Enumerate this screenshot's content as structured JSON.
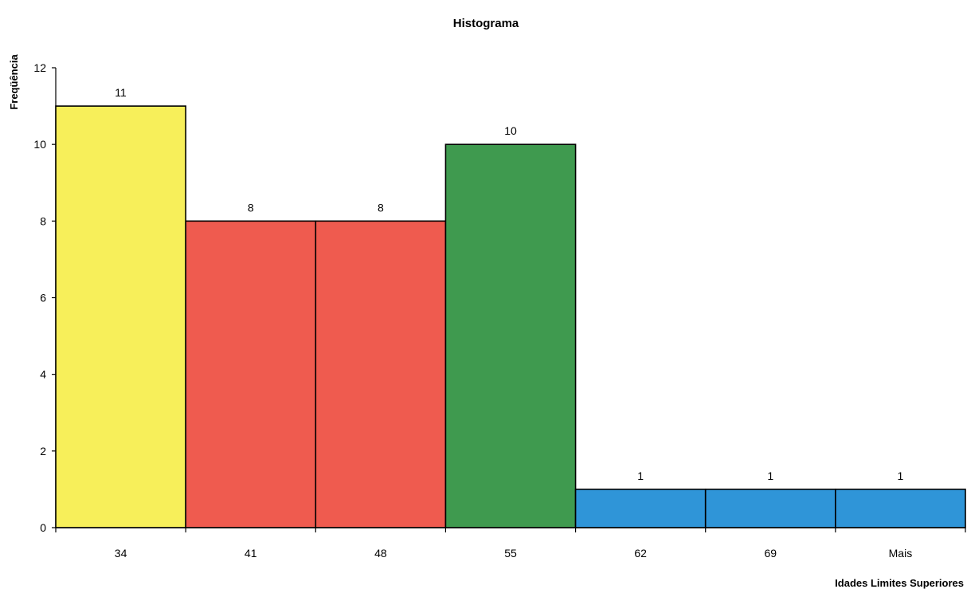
{
  "chart_data": {
    "type": "bar",
    "title": "Histograma",
    "xlabel": "Idades Limites Superiores",
    "ylabel": "Freqüência",
    "categories": [
      "34",
      "41",
      "48",
      "55",
      "62",
      "69",
      "Mais"
    ],
    "values": [
      11,
      8,
      8,
      10,
      1,
      1,
      1
    ],
    "bar_colors": [
      "#f7ef5a",
      "#ef5b4f",
      "#ef5b4f",
      "#3f9a4f",
      "#2f95d8",
      "#2f95d8",
      "#2f95d8"
    ],
    "data_labels": [
      "11",
      "8",
      "8",
      "10",
      "1",
      "1",
      "1"
    ],
    "ylim": [
      0,
      12
    ],
    "yticks": [
      0,
      2,
      4,
      6,
      8,
      10,
      12
    ],
    "ytick_labels": [
      "0",
      "2",
      "4",
      "6",
      "8",
      "10",
      "12"
    ],
    "grid": false,
    "legend": "none"
  }
}
